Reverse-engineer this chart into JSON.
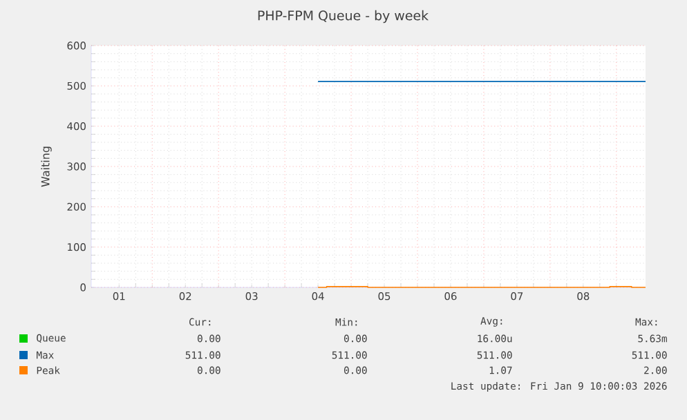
{
  "chart_data": {
    "type": "line",
    "title": "PHP-FPM Queue - by week",
    "ylabel": "Waiting",
    "xlim": [
      0.58,
      8.94
    ],
    "ylim": [
      0,
      600
    ],
    "xticks": [
      {
        "value": 1,
        "label": "01"
      },
      {
        "value": 1.5,
        "label": null
      },
      {
        "value": 2,
        "label": "02"
      },
      {
        "value": 2.5,
        "label": null
      },
      {
        "value": 3,
        "label": "03"
      },
      {
        "value": 3.5,
        "label": null
      },
      {
        "value": 4,
        "label": "04"
      },
      {
        "value": 4.5,
        "label": null
      },
      {
        "value": 5,
        "label": "05"
      },
      {
        "value": 5.5,
        "label": null
      },
      {
        "value": 6,
        "label": "06"
      },
      {
        "value": 6.5,
        "label": null
      },
      {
        "value": 7,
        "label": "07"
      },
      {
        "value": 7.5,
        "label": null
      },
      {
        "value": 8,
        "label": "08"
      },
      {
        "value": 8.5,
        "label": null
      }
    ],
    "yticks": [
      0,
      100,
      200,
      300,
      400,
      500,
      600
    ],
    "grid": true,
    "legend": "bottom",
    "marker": "none",
    "line_style": "solid",
    "series": [
      {
        "name": "Queue",
        "color": "#00cc00"
      },
      {
        "name": "Max",
        "color": "#0066b3",
        "x": [
          4.0,
          8.94
        ],
        "values": [
          511,
          511
        ]
      },
      {
        "name": "Peak",
        "color": "#ff8000",
        "x": [
          4.0,
          4.13,
          4.13,
          4.75,
          4.75,
          8.4,
          8.4,
          8.73,
          8.73,
          8.94
        ],
        "values": [
          0,
          0,
          2,
          2,
          0,
          0,
          2,
          2,
          0,
          0
        ]
      }
    ],
    "annotations": [
      "Cur:",
      "Min:",
      "Avg:",
      "Max:",
      "0.00",
      "0.00",
      "16.00u",
      "5.63m",
      "511.00",
      "511.00",
      "511.00",
      "511.00",
      "0.00",
      "0.00",
      "1.07",
      "2.00",
      "Last update: Fri Jan  9 10:00:03 2026"
    ]
  }
}
